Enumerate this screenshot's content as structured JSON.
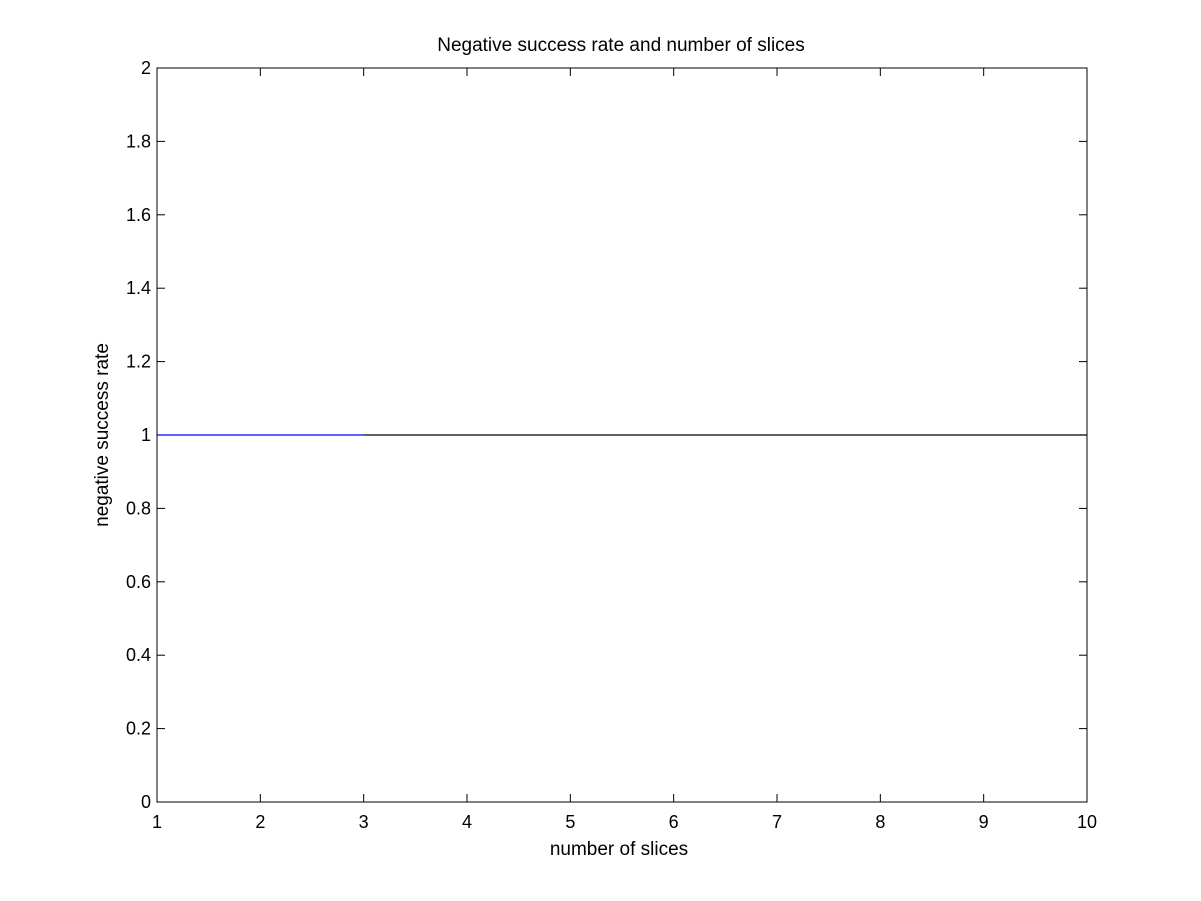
{
  "chart_data": {
    "type": "line",
    "title": "Negative success rate and number of slices",
    "xlabel": "number of slices",
    "ylabel": "negative success rate",
    "xlim": [
      1,
      10
    ],
    "ylim": [
      0,
      2
    ],
    "xticks": [
      "1",
      "2",
      "3",
      "4",
      "5",
      "6",
      "7",
      "8",
      "9",
      "10"
    ],
    "yticks": [
      "0",
      "0.2",
      "0.4",
      "0.6",
      "0.8",
      "1",
      "1.2",
      "1.4",
      "1.6",
      "1.8",
      "2"
    ],
    "grid": false,
    "series": [
      {
        "color": "#0000ff",
        "x": [
          1,
          2,
          3
        ],
        "y": [
          1,
          1,
          1
        ]
      },
      {
        "color": "#000000",
        "x": [
          3,
          4,
          5,
          6,
          7,
          8,
          9,
          10
        ],
        "y": [
          1,
          1,
          1,
          1,
          1,
          1,
          1,
          1
        ]
      }
    ]
  }
}
